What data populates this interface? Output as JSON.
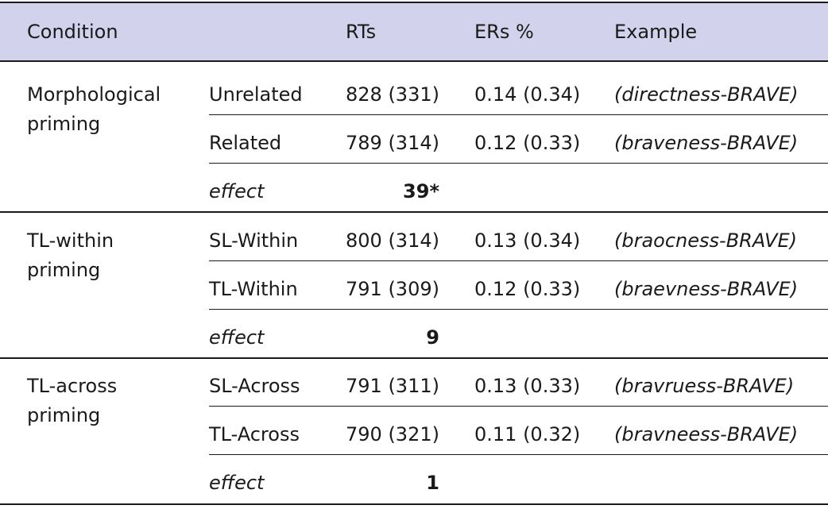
{
  "table": {
    "headers": [
      "Condition",
      "",
      "RTs",
      "ERs %",
      "Example"
    ],
    "groups": [
      {
        "condition": "Morphological priming",
        "condition_lines": [
          "Morphological",
          "priming"
        ],
        "rows": [
          {
            "label": "Unrelated",
            "rts": "828 (331)",
            "ers": "0.14 (0.34)",
            "example": "(directness-BRAVE)"
          },
          {
            "label": "Related",
            "rts": "789 (314)",
            "ers": "0.12 (0.33)",
            "example": "(braveness-BRAVE)"
          }
        ],
        "effect_label": "effect",
        "effect_value": "39*"
      },
      {
        "condition": "TL-within priming",
        "condition_lines": [
          "TL-within",
          "priming"
        ],
        "rows": [
          {
            "label": "SL-Within",
            "rts": "800 (314)",
            "ers": "0.13 (0.34)",
            "example": "(braocness-BRAVE)"
          },
          {
            "label": "TL-Within",
            "rts": "791 (309)",
            "ers": "0.12 (0.33)",
            "example": "(braevness-BRAVE)"
          }
        ],
        "effect_label": "effect",
        "effect_value": "9"
      },
      {
        "condition": "TL-across priming",
        "condition_lines": [
          "TL-across",
          "priming"
        ],
        "rows": [
          {
            "label": "SL-Across",
            "rts": "791 (311)",
            "ers": "0.13 (0.33)",
            "example": "(bravruess-BRAVE)"
          },
          {
            "label": "TL-Across",
            "rts": "790 (321)",
            "ers": "0.11 (0.32)",
            "example": "(bravneess-BRAVE)"
          }
        ],
        "effect_label": "effect",
        "effect_value": "1"
      }
    ]
  },
  "colors": {
    "header_background": "#d2d2ec",
    "text": "#1a1a1a",
    "rules": "#1a1a1a"
  }
}
